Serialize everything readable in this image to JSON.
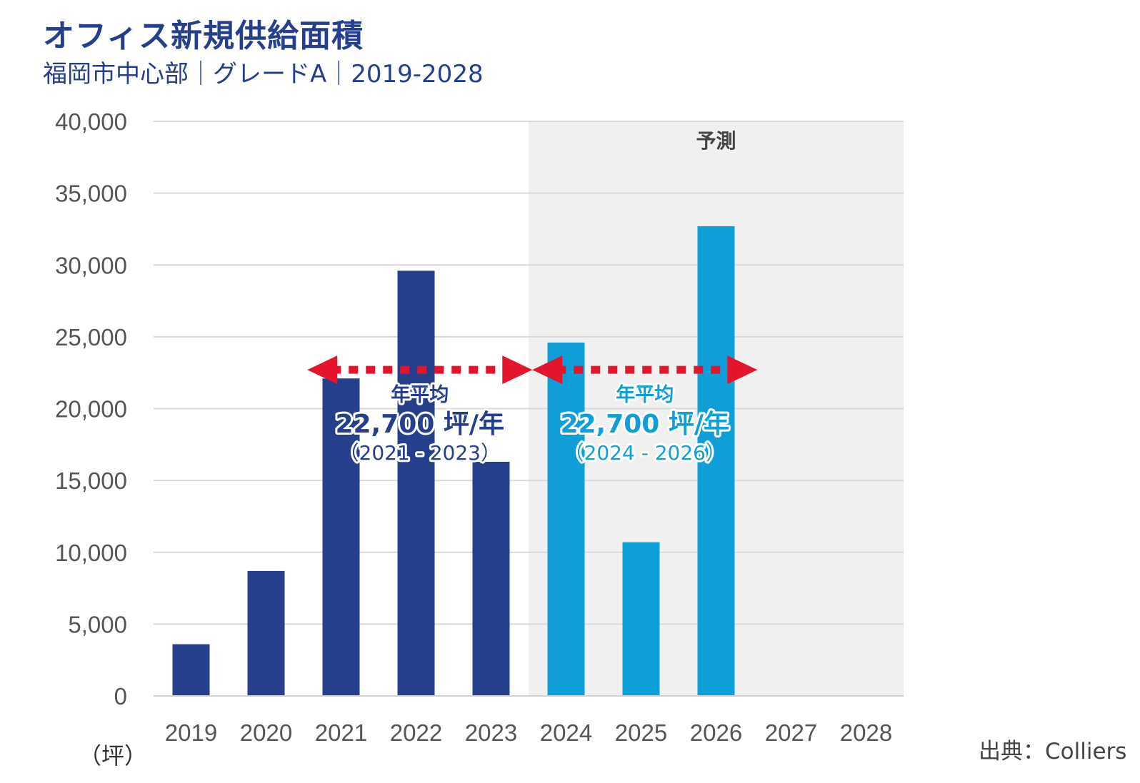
{
  "header": {
    "title": "オフィス新規供給面積",
    "subtitle": "福岡市中心部｜グレードA｜2019-2028"
  },
  "footer": {
    "unit": "（坪）",
    "source": "出典：Colliers"
  },
  "colors": {
    "actual": "#253f8c",
    "forecast": "#0e9fd9",
    "arrow": "#e3142b",
    "forecast_bg": "#f0f0f0",
    "grid": "#d9d9d9"
  },
  "chart_data": {
    "type": "bar",
    "title": "オフィス新規供給面積",
    "subtitle": "福岡市中心部｜グレードA｜2019-2028",
    "ylabel": "（坪）",
    "ylim": [
      0,
      40000
    ],
    "yticks": [
      0,
      5000,
      10000,
      15000,
      20000,
      25000,
      30000,
      35000,
      40000
    ],
    "ytick_labels": [
      "0",
      "5,000",
      "10,000",
      "15,000",
      "20,000",
      "25,000",
      "30,000",
      "35,000",
      "40,000"
    ],
    "categories": [
      "2019",
      "2020",
      "2021",
      "2022",
      "2023",
      "2024",
      "2025",
      "2026",
      "2027",
      "2028"
    ],
    "values": [
      3600,
      8700,
      22100,
      29600,
      16300,
      24600,
      10700,
      32700,
      0,
      0
    ],
    "forecast_from": "2024",
    "forecast_label": "予測",
    "annotations": [
      {
        "label": "年平均",
        "value": "22,700 坪/年",
        "range": "（2021 - 2023）",
        "arrow_value": 22700,
        "from": "2021",
        "to": "2023",
        "style": "actual"
      },
      {
        "label": "年平均",
        "value": "22,700 坪/年",
        "range": "（2024 - 2026）",
        "arrow_value": 22700,
        "from": "2024",
        "to": "2026",
        "style": "forecast"
      }
    ]
  }
}
